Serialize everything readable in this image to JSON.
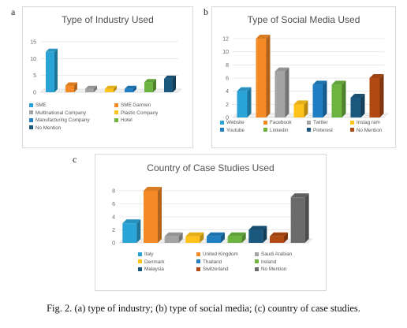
{
  "figure": {
    "caption": "Fig. 2. (a) type of industry; (b) type of social media; (c) country of case studies."
  },
  "colors": [
    "#2aa3d6",
    "#f38a26",
    "#a3a3a3",
    "#ffc21a",
    "#1f7fc2",
    "#6cb33f",
    "#1b587e",
    "#b14a12",
    "#6b6b6b"
  ],
  "chart_data": [
    {
      "panel": "a",
      "type": "bar",
      "title": "Type of Industry Used",
      "categories": [
        "SME",
        "SME Garmen",
        "Multinational Company",
        "Plastic Company",
        "Manufacturing Company",
        "Hotel",
        "No Mention"
      ],
      "values": [
        12,
        2,
        1,
        1,
        1,
        3,
        4
      ],
      "ylim": [
        0,
        15
      ],
      "yticks": [
        "0",
        "5",
        "10",
        "15"
      ],
      "grid": true,
      "legend_position": "bottom"
    },
    {
      "panel": "b",
      "type": "bar",
      "title": "Type of Social Media Used",
      "categories": [
        "Website",
        "Facebook",
        "Twitter",
        "Instagram",
        "Youtube",
        "Linkedin",
        "Pinterest",
        "No Mention"
      ],
      "legend_labels": [
        "Website",
        "Facebook",
        "Twitter",
        "Instag ram",
        "Youtube",
        "Linkedin",
        "Pinterest",
        "No Mention"
      ],
      "values": [
        4,
        12,
        7,
        2,
        5,
        5,
        3,
        6
      ],
      "ylim": [
        0,
        12
      ],
      "yticks": [
        "0",
        "2",
        "4",
        "6",
        "8",
        "10",
        "12"
      ],
      "grid": true,
      "legend_position": "bottom"
    },
    {
      "panel": "c",
      "type": "bar",
      "title": "Country of Case Studies Used",
      "categories": [
        "Italy",
        "United Kingdom",
        "Saudi Arabian",
        "Denmark",
        "Thailand",
        "Ireland",
        "Malaysia",
        "Switzerland",
        "No Mention"
      ],
      "values": [
        3,
        8,
        1,
        1,
        1,
        1,
        2,
        1,
        7
      ],
      "ylim": [
        0,
        8
      ],
      "yticks": [
        "0",
        "2",
        "4",
        "6",
        "8"
      ],
      "grid": true,
      "legend_position": "bottom"
    }
  ]
}
